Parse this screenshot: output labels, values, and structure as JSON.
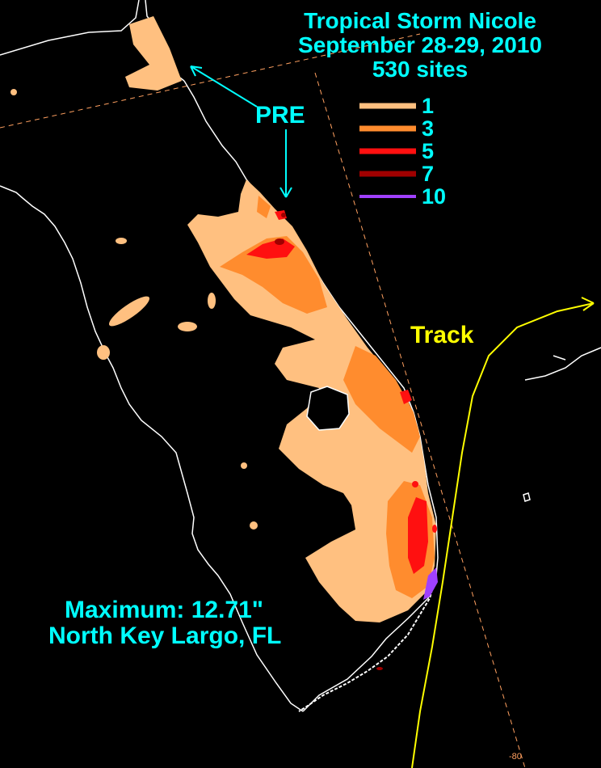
{
  "title": {
    "line1": "Tropical Storm Nicole",
    "line2": "September 28-29, 2010",
    "line3": "530 sites",
    "color": "#00FFFF"
  },
  "legend": [
    {
      "value": "1",
      "color": "#FFC080"
    },
    {
      "value": "3",
      "color": "#FF8C2E"
    },
    {
      "value": "5",
      "color": "#FF1010"
    },
    {
      "value": "7",
      "color": "#A00000"
    },
    {
      "value": "10",
      "color": "#A040FF"
    }
  ],
  "annotations": {
    "pre": "PRE",
    "track": "Track",
    "track_color": "#FFFF00",
    "maximum": "Maximum:  12.71\"",
    "location": "North Key Largo, FL",
    "longitude_label": "-80",
    "gridline_color": "#FFA060"
  },
  "colors": {
    "coastline": "#FFFFFF",
    "background": "#000000",
    "label": "#00FFFF"
  }
}
